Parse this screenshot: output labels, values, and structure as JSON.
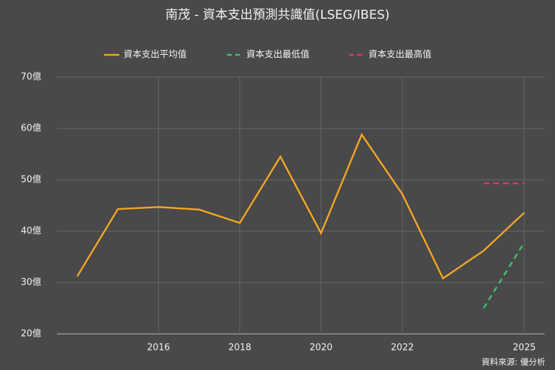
{
  "chart_data": {
    "type": "line",
    "title": "南茂 - 資本支出預測共識值(LSEG/IBES)",
    "x": [
      2014,
      2015,
      2016,
      2017,
      2018,
      2019,
      2020,
      2021,
      2022,
      2023,
      2024,
      2025
    ],
    "series": [
      {
        "name": "資本支出平均值",
        "color": "#f5a623",
        "dash": false,
        "values": [
          31.2,
          44.3,
          44.7,
          44.2,
          41.6,
          54.5,
          39.6,
          58.8,
          47.2,
          30.8,
          36.2,
          43.6
        ]
      },
      {
        "name": "資本支出最低值",
        "color": "#3fbf6a",
        "dash": true,
        "values": [
          null,
          null,
          null,
          null,
          null,
          null,
          null,
          null,
          null,
          null,
          25,
          37.8
        ]
      },
      {
        "name": "資本支出最高值",
        "color": "#e8336e",
        "dash": true,
        "values": [
          null,
          null,
          null,
          null,
          null,
          null,
          null,
          null,
          null,
          null,
          49.3,
          49.3
        ]
      }
    ],
    "xlim": [
      2013.5,
      2025.5
    ],
    "xticks": [
      2016,
      2018,
      2020,
      2022,
      2025
    ],
    "ylim": [
      20,
      70
    ],
    "yticks": [
      {
        "value": 20,
        "label": "20億"
      },
      {
        "value": 30,
        "label": "30億"
      },
      {
        "value": 40,
        "label": "40億"
      },
      {
        "value": 50,
        "label": "50億"
      },
      {
        "value": 60,
        "label": "60億"
      },
      {
        "value": 70,
        "label": "70億"
      }
    ],
    "grid": true,
    "source": "資料來源: 優分析"
  }
}
